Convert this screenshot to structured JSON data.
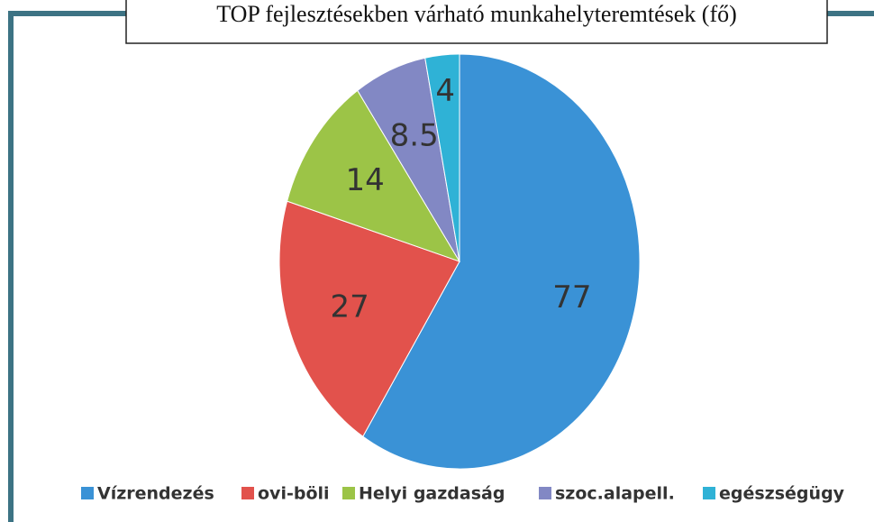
{
  "chart_data": {
    "type": "pie",
    "title": "TOP fejlesztésekben várható munkahelyteremtések (fő)",
    "categories": [
      "Vízrendezés",
      "ovi-böli",
      "Helyi gazdaság",
      "szoc.alapell.",
      "egészségügy"
    ],
    "values": [
      77,
      27,
      14,
      8.5,
      4
    ],
    "colors": [
      "#3a92d6",
      "#e2524c",
      "#9cc447",
      "#8288c4",
      "#2fb2d6"
    ],
    "legend": "bottom"
  }
}
